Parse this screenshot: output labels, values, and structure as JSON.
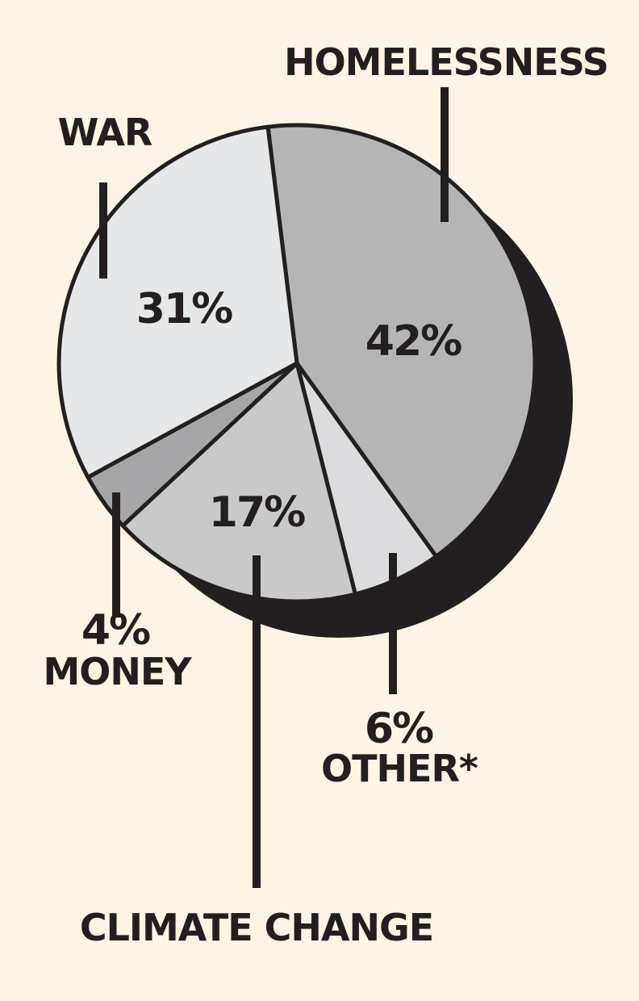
{
  "colors": {
    "background": "#fdf4e5",
    "ink": "#231f20",
    "shadow": "#231f20"
  },
  "chart_data": {
    "type": "pie",
    "title": "",
    "slices": [
      {
        "label": "HOMELESSNESS",
        "value": 42,
        "pct_label": "42%",
        "color": "#b5b5b6"
      },
      {
        "label": "OTHER*",
        "value": 6,
        "pct_label": "6%",
        "color": "#dcdcde"
      },
      {
        "label": "CLIMATE CHANGE",
        "value": 17,
        "pct_label": "17%",
        "color": "#c9c9ca"
      },
      {
        "label": "MONEY",
        "value": 4,
        "pct_label": "4%",
        "color": "#a6a6a8"
      },
      {
        "label": "WAR",
        "value": 31,
        "pct_label": "31%",
        "color": "#e6e7e9"
      }
    ],
    "legend": "none",
    "style": "3d-drop-shadow"
  }
}
